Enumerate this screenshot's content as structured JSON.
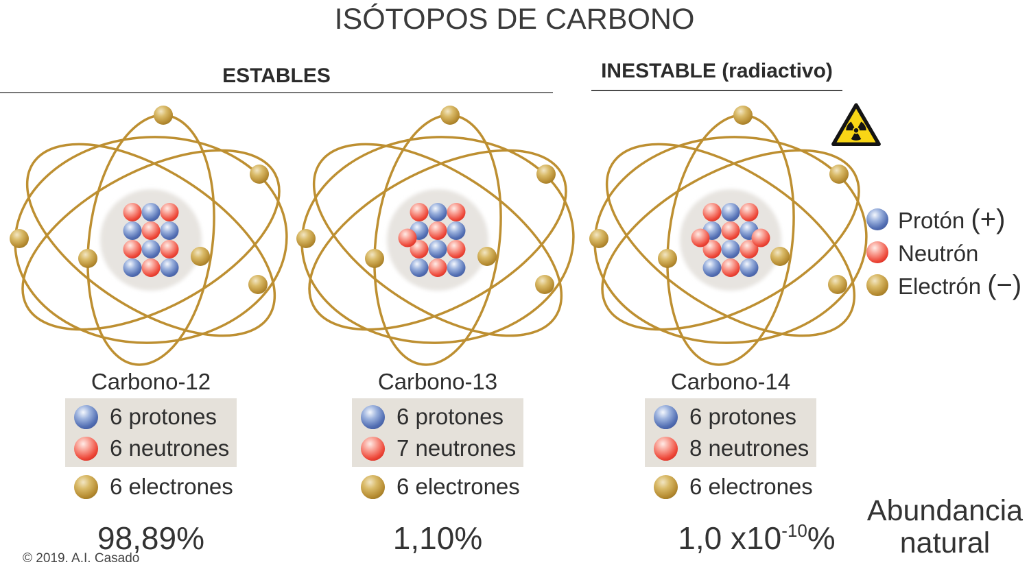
{
  "title": "ISÓTOPOS DE CARBONO",
  "headings": {
    "stable": "ESTABLES",
    "unstable": "INESTABLE (radiactivo)"
  },
  "icons": {
    "radiation_warning": "radioactive-trefoil"
  },
  "legend": {
    "proton_label": "Protón",
    "proton_sign": "(+)",
    "neutron_label": "Neutrón",
    "neutron_sign": "",
    "electron_label": "Electrón",
    "electron_sign": "(−)"
  },
  "isotopes": [
    {
      "name": "Carbono-12",
      "protons_text": "6 protones",
      "neutrons_text": "6 neutrones",
      "electrons_text": "6 electrones",
      "abundance_mantissa": "98,89",
      "abundance_exponent": "",
      "abundance_suffix": "%",
      "nucleus_grid": [
        "npn",
        "pnp",
        "npn",
        "pnp"
      ],
      "extra_neutron_sides": []
    },
    {
      "name": "Carbono-13",
      "protons_text": "6 protones",
      "neutrons_text": "7 neutrones",
      "electrons_text": "6 electrones",
      "abundance_mantissa": "1,10",
      "abundance_exponent": "",
      "abundance_suffix": "%",
      "nucleus_grid": [
        "npn",
        "pnp",
        "npn",
        "pnp"
      ],
      "extra_neutron_sides": [
        "left"
      ]
    },
    {
      "name": "Carbono-14",
      "protons_text": "6 protones",
      "neutrons_text": "8 neutrones",
      "electrons_text": "6 electrones",
      "abundance_mantissa": "1,0 x10",
      "abundance_exponent": "-10",
      "abundance_suffix": "%",
      "nucleus_grid": [
        "npn",
        "pnp",
        "npn",
        "pnp"
      ],
      "extra_neutron_sides": [
        "left",
        "right"
      ]
    }
  ],
  "abundance_caption": {
    "line1": "Abundancia",
    "line2": "natural"
  },
  "copyright": "© 2019. A.I. Casado",
  "colors": {
    "proton": "#4a67ae",
    "neutron": "#e8352b",
    "electron": "#b08a2e",
    "orbit": "#bd8f31",
    "info_box_bg": "#e5e1da",
    "radiation_yellow": "#f9d616"
  }
}
